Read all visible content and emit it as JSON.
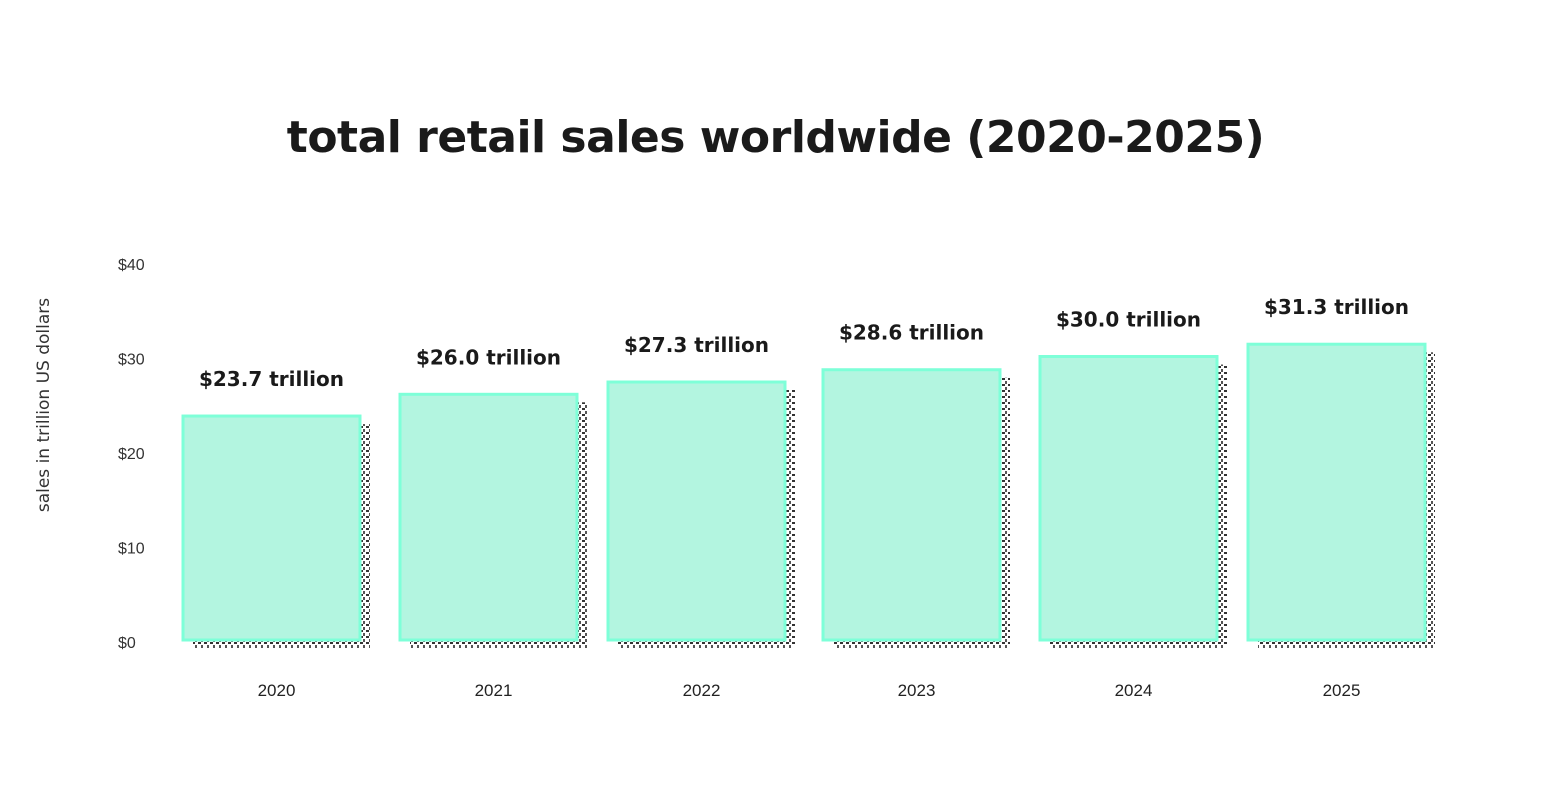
{
  "chart_data": {
    "type": "bar",
    "title": "total retail sales worldwide (2020-2025)",
    "xlabel": "",
    "ylabel": "sales in trillion US dollars",
    "categories": [
      "2020",
      "2021",
      "2022",
      "2023",
      "2024",
      "2025"
    ],
    "values": [
      23.7,
      26.0,
      27.3,
      28.6,
      30.0,
      31.3
    ],
    "data_labels": [
      "$23.7 trillion",
      "$26.0 trillion",
      "$27.3 trillion",
      "$28.6 trillion",
      "$30.0 trillion",
      "$31.3 trillion"
    ],
    "ylim": [
      0,
      40
    ],
    "yticks": [
      0,
      10,
      20,
      30,
      40
    ],
    "ytick_labels": [
      "$0",
      "$10",
      "$20",
      "$30",
      "$40"
    ],
    "grid": false,
    "bar_color": "#b3f5e0",
    "bar_edge_color": "#7effd8"
  }
}
